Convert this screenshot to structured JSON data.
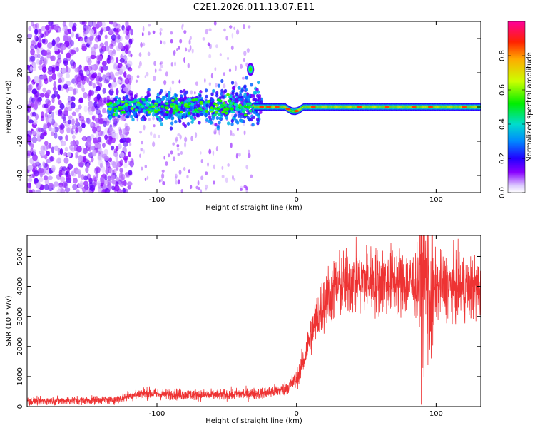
{
  "title": "C2E1.2026.011.13.07.E11",
  "chart_data": [
    {
      "type": "heatmap",
      "xlabel": "Height of straight line (km)",
      "ylabel": "Frequency (Hz)",
      "xlim": [
        -193,
        132
      ],
      "ylim": [
        -50,
        50
      ],
      "xticks": [
        -100,
        0,
        100
      ],
      "yticks": [
        -40,
        -20,
        0,
        20,
        40
      ],
      "colorbar": {
        "label": "Normalized spectral amplitude",
        "range": [
          0,
          1
        ],
        "ticks": [
          0,
          0.2,
          0.4,
          0.6,
          0.8
        ],
        "tick_labels": [
          "0.0",
          "0.2",
          "0.4",
          "0.6",
          "0.8"
        ]
      },
      "features": [
        {
          "description": "signal band near 0 Hz",
          "x_start": -135,
          "x_end": 132,
          "freq_center": 0
        },
        {
          "description": "scattered noise",
          "x_start": -193,
          "x_end": -120
        },
        {
          "description": "isolated blob",
          "x": -33,
          "freq": 22
        }
      ]
    },
    {
      "type": "line",
      "xlabel": "Height of straight line (km)",
      "ylabel": "SNR (10 * v/v)",
      "xlim": [
        -193,
        132
      ],
      "ylim": [
        0,
        5700
      ],
      "xticks": [
        -100,
        0,
        100
      ],
      "yticks": [
        0,
        1000,
        2000,
        3000,
        4000,
        5000
      ],
      "color": "#ee3333",
      "series": [
        {
          "name": "SNR",
          "x": [
            -193,
            -170,
            -150,
            -130,
            -120,
            -110,
            -100,
            -80,
            -60,
            -40,
            -30,
            -20,
            -10,
            -5,
            0,
            5,
            10,
            15,
            20,
            25,
            30,
            40,
            50,
            60,
            70,
            80,
            90,
            93,
            96,
            100,
            110,
            120,
            132
          ],
          "y": [
            180,
            190,
            210,
            230,
            350,
            450,
            420,
            400,
            380,
            420,
            430,
            470,
            560,
            700,
            900,
            1500,
            2400,
            3000,
            3500,
            3800,
            4000,
            4150,
            4200,
            4150,
            4200,
            4100,
            4100,
            4300,
            3500,
            4050,
            4000,
            3950,
            3900
          ]
        }
      ]
    }
  ]
}
